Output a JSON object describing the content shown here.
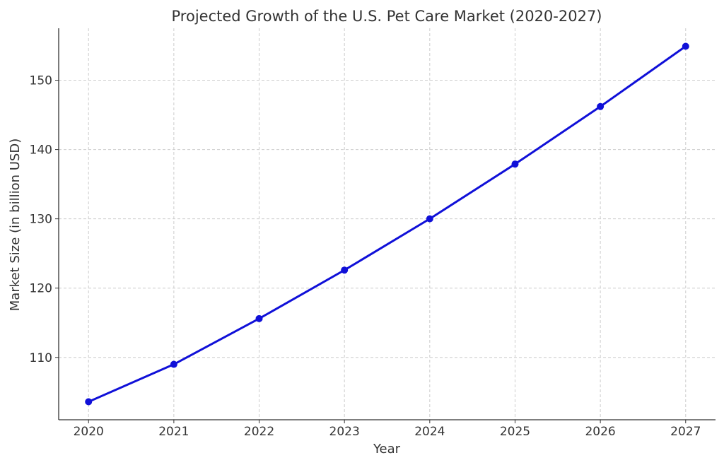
{
  "chart_data": {
    "type": "line",
    "title": "Projected Growth of the U.S. Pet Care Market (2020-2027)",
    "xlabel": "Year",
    "ylabel": "Market Size (in billion USD)",
    "x": [
      2020,
      2021,
      2022,
      2023,
      2024,
      2025,
      2026,
      2027
    ],
    "series": [
      {
        "values": [
          103.6,
          109.0,
          115.6,
          122.6,
          130.0,
          137.9,
          146.2,
          154.9
        ],
        "color": "#1010d8"
      }
    ],
    "x_ticks": [
      "2020",
      "2021",
      "2022",
      "2023",
      "2024",
      "2025",
      "2026",
      "2027"
    ],
    "y_ticks": [
      110,
      120,
      130,
      140,
      150
    ],
    "ylim": [
      101.0,
      157.5
    ],
    "xlim": [
      2019.65,
      2027.35
    ],
    "grid": true,
    "marker": "circle"
  }
}
